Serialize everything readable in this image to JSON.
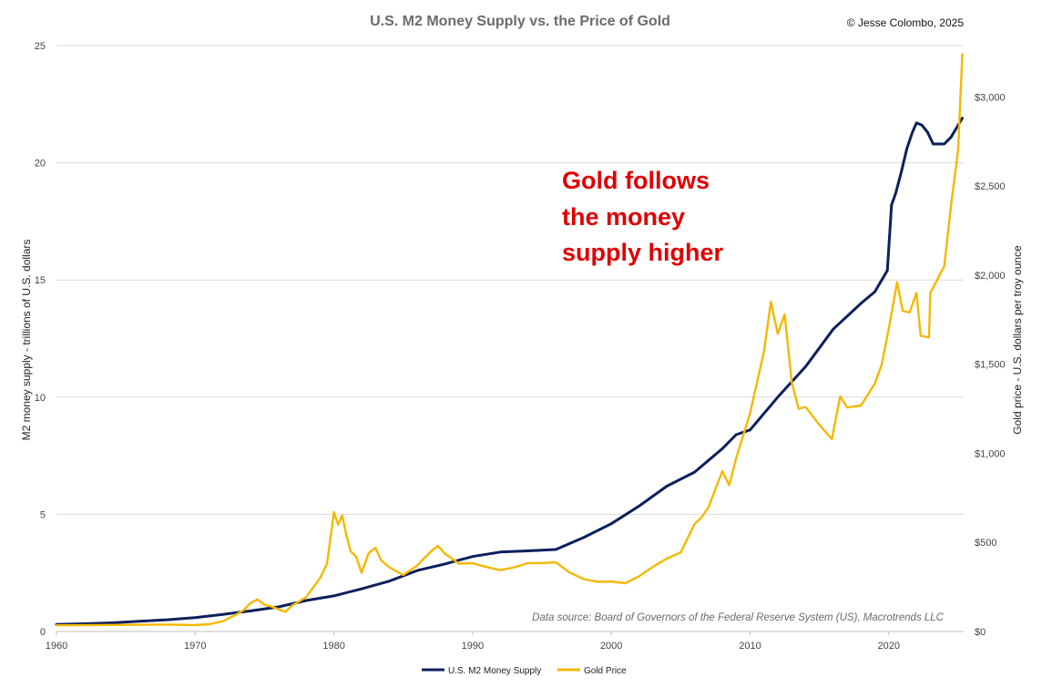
{
  "chart_data": {
    "type": "line",
    "title": "U.S. M2 Money Supply vs. the Price of Gold",
    "copyright": "© Jesse Colombo, 2025",
    "annotation": [
      "Gold follows",
      "the money",
      "supply higher"
    ],
    "source": "Data source: Board of Governors of the Federal Reserve System (US), Macrotrends LLC",
    "x_range": [
      1960,
      2025.4
    ],
    "x_ticks": [
      1960,
      1970,
      1980,
      1990,
      2000,
      2010,
      2020
    ],
    "x_tick_labels": [
      "1960",
      "1970",
      "1980",
      "1990",
      "2000",
      "2010",
      "2020"
    ],
    "y_left": {
      "label": "M2 money supply - trillions of U.S. dollars",
      "range": [
        0,
        25
      ],
      "ticks": [
        0,
        5,
        10,
        15,
        20,
        25
      ],
      "tick_labels": [
        "0",
        "5",
        "10",
        "15",
        "20",
        "25"
      ]
    },
    "y_right": {
      "label": "Gold price - U.S. dollars per troy ounce",
      "range": [
        0,
        3288
      ],
      "ticks": [
        0,
        500,
        1000,
        1500,
        2000,
        2500,
        3000
      ],
      "tick_labels": [
        "$0",
        "$500",
        "$1,000",
        "$1,500",
        "$2,000",
        "$2,500",
        "$3,000"
      ]
    },
    "legend_position": "bottom-center",
    "colors": {
      "m2": "#0d1f5c",
      "gold": "#f5b800"
    },
    "series": [
      {
        "name": "U.S. M2 Money Supply",
        "axis": "left",
        "x": [
          1960,
          1962,
          1964,
          1966,
          1968,
          1970,
          1972,
          1974,
          1976,
          1978,
          1980,
          1982,
          1984,
          1986,
          1988,
          1990,
          1992,
          1994,
          1996,
          1998,
          2000,
          2002,
          2004,
          2006,
          2008,
          2009,
          2010,
          2012,
          2014,
          2016,
          2018,
          2019,
          2019.9,
          2020.2,
          2020.5,
          2020.9,
          2021.3,
          2021.7,
          2022.0,
          2022.4,
          2022.8,
          2023.2,
          2023.6,
          2024.0,
          2024.5,
          2025.0,
          2025.3
        ],
        "values": [
          0.3,
          0.33,
          0.37,
          0.44,
          0.5,
          0.59,
          0.73,
          0.88,
          1.05,
          1.32,
          1.52,
          1.82,
          2.15,
          2.6,
          2.88,
          3.2,
          3.39,
          3.44,
          3.5,
          4.01,
          4.6,
          5.35,
          6.2,
          6.8,
          7.8,
          8.4,
          8.6,
          10.0,
          11.3,
          12.9,
          14.0,
          14.5,
          15.4,
          18.2,
          18.7,
          19.6,
          20.6,
          21.3,
          21.7,
          21.6,
          21.3,
          20.8,
          20.8,
          20.8,
          21.1,
          21.6,
          21.9
        ]
      },
      {
        "name": "Gold Price",
        "axis": "right",
        "x": [
          1960,
          1968,
          1970,
          1971,
          1972,
          1973,
          1973.5,
          1974,
          1974.5,
          1975,
          1975.5,
          1976,
          1976.5,
          1977,
          1978,
          1979,
          1979.5,
          1980.0,
          1980.3,
          1980.6,
          1980.9,
          1981.2,
          1981.6,
          1982.0,
          1982.5,
          1983.0,
          1983.4,
          1984,
          1985,
          1986,
          1987,
          1987.5,
          1988,
          1989,
          1990,
          1991,
          1992,
          1993,
          1994,
          1995,
          1996,
          1997,
          1998,
          1999,
          2000,
          2001,
          2002,
          2003,
          2004,
          2005,
          2006,
          2006.5,
          2007,
          2008,
          2008.5,
          2009,
          2010,
          2011,
          2011.5,
          2012,
          2012.5,
          2013,
          2013.5,
          2014,
          2015,
          2015.9,
          2016.5,
          2017,
          2018,
          2019,
          2019.5,
          2020,
          2020.6,
          2021,
          2021.5,
          2022,
          2022.3,
          2022.9,
          2023,
          2024,
          2024.5,
          2025,
          2025.3
        ],
        "values": [
          35,
          39,
          36,
          41,
          58,
          97,
          120,
          160,
          180,
          150,
          140,
          125,
          110,
          147,
          193,
          300,
          380,
          670,
          600,
          650,
          540,
          450,
          420,
          330,
          440,
          470,
          400,
          360,
          317,
          370,
          450,
          480,
          437,
          381,
          383,
          362,
          344,
          360,
          384,
          384,
          388,
          331,
          294,
          279,
          280,
          271,
          310,
          363,
          409,
          444,
          604,
          640,
          697,
          900,
          820,
          972,
          1225,
          1570,
          1850,
          1670,
          1780,
          1400,
          1250,
          1260,
          1160,
          1080,
          1320,
          1257,
          1268,
          1392,
          1500,
          1700,
          1960,
          1800,
          1790,
          1900,
          1660,
          1650,
          1900,
          2050,
          2400,
          2700,
          3240
        ]
      }
    ]
  }
}
